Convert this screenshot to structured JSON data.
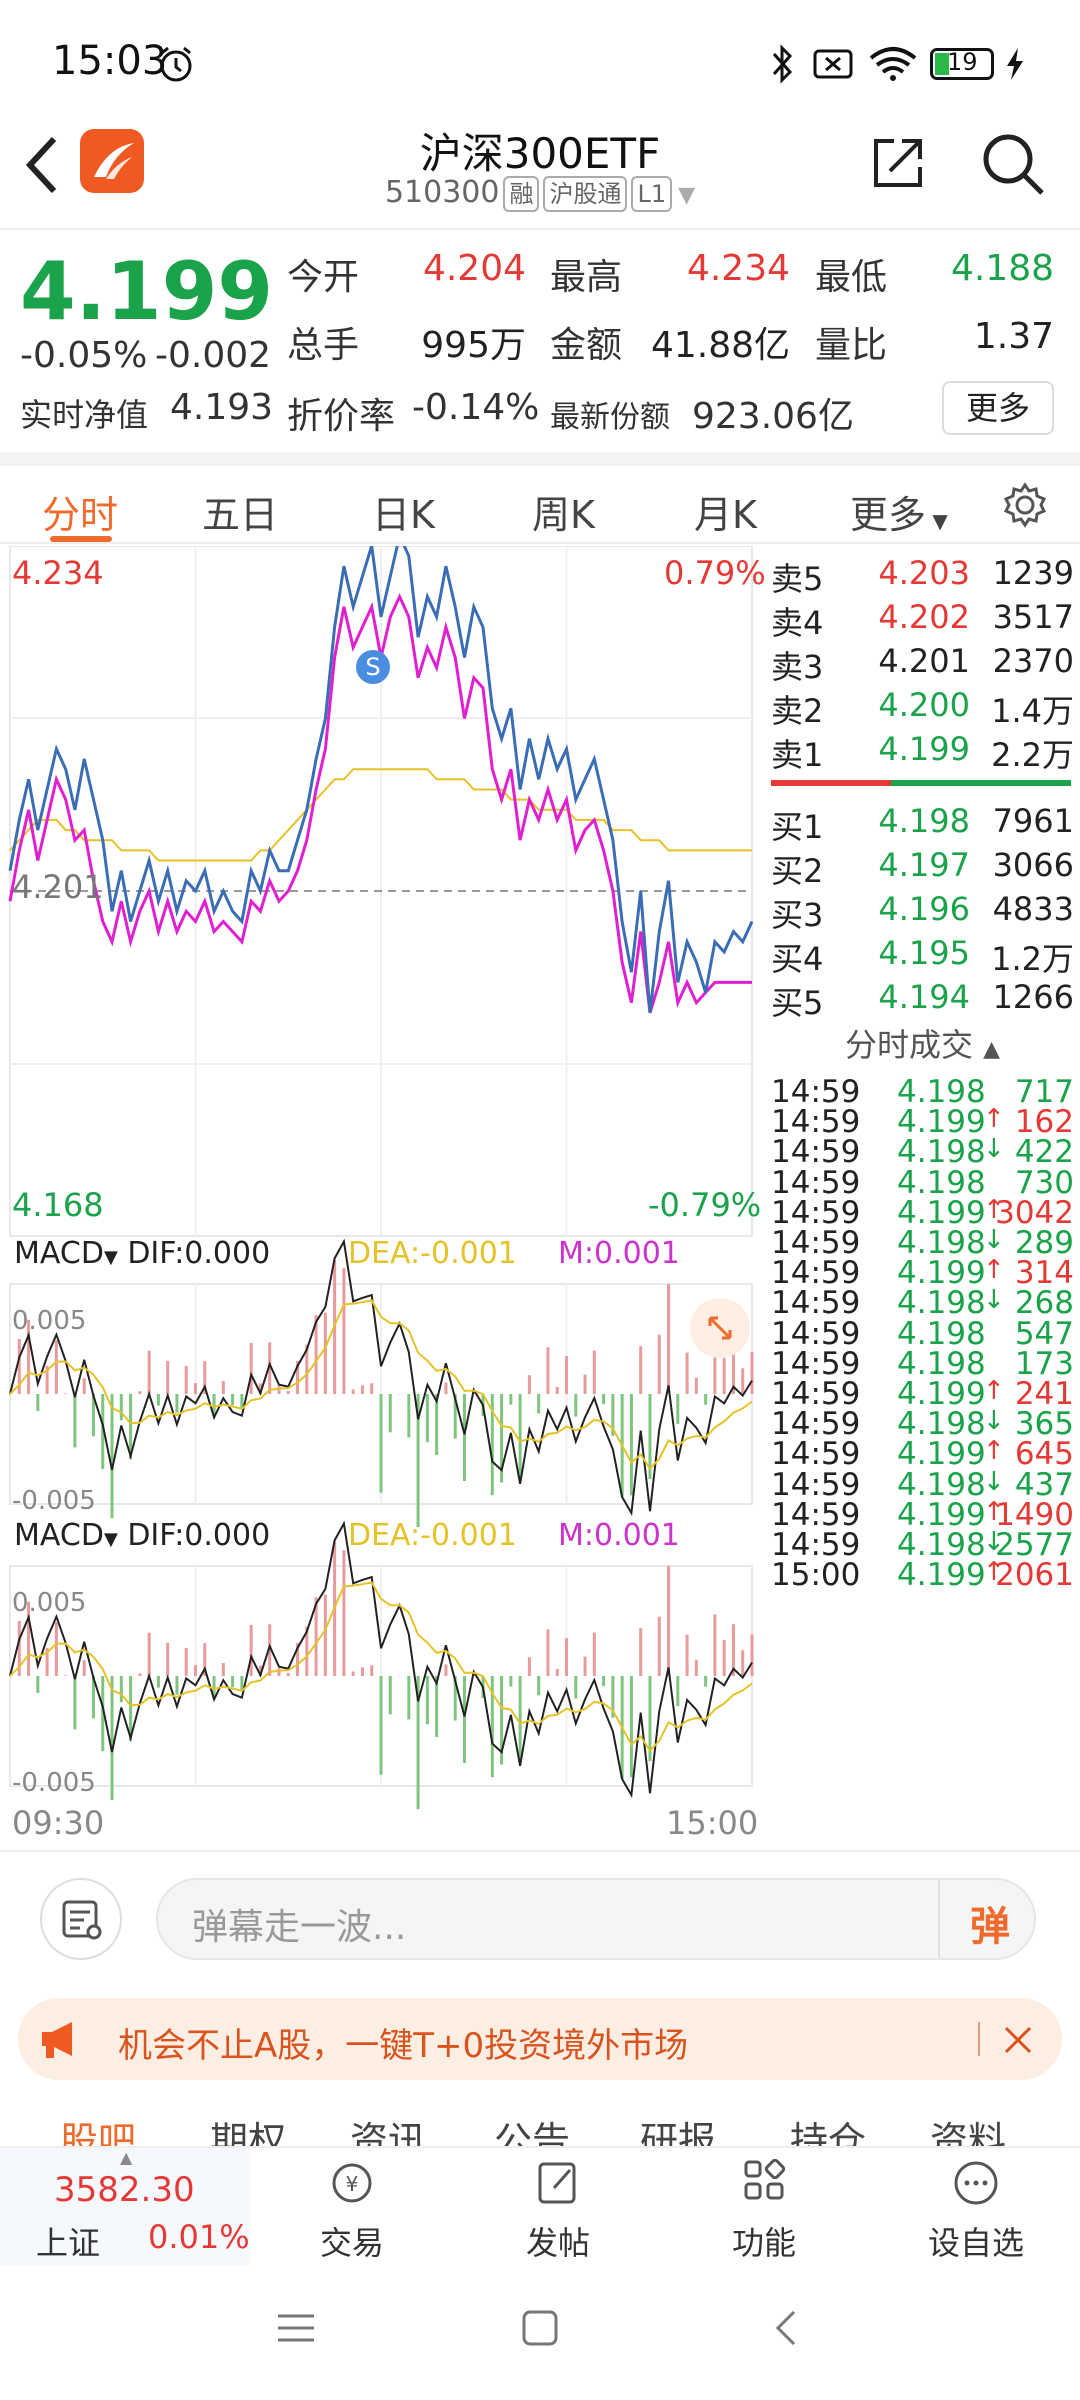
{
  "status": {
    "time": "15:03",
    "battery": "19"
  },
  "header": {
    "title": "沪深300ETF",
    "code": "510300",
    "tags": [
      "融",
      "沪股通",
      "L1"
    ]
  },
  "quote": {
    "price": "4.199",
    "pct": "-0.05%",
    "chg": "-0.002",
    "nav_label": "实时净值",
    "nav": "4.193",
    "discount_label": "折价率",
    "discount": "-0.14%",
    "shares_label": "最新份额",
    "shares": "923.06亿",
    "open_label": "今开",
    "open": "4.204",
    "high_label": "最高",
    "high": "4.234",
    "low_label": "最低",
    "low": "4.188",
    "vol_label": "总手",
    "vol": "995万",
    "amt_label": "金额",
    "amt": "41.88亿",
    "ratio_label": "量比",
    "ratio": "1.37",
    "more": "更多"
  },
  "tabs": [
    "分时",
    "五日",
    "日K",
    "周K",
    "月K",
    "更多"
  ],
  "chart": {
    "top_price": "4.234",
    "top_pct": "0.79%",
    "mid_price": "4.201",
    "bottom_price": "4.168",
    "bottom_pct": "-0.79%",
    "marker": "S",
    "start_time": "09:30",
    "end_time": "15:00"
  },
  "macd": [
    {
      "name": "MACD",
      "dif": "DIF:0.000",
      "dea": "DEA:-0.001",
      "m": "M:0.001",
      "top": "0.005",
      "bottom": "-0.005"
    },
    {
      "name": "MACD",
      "dif": "DIF:0.000",
      "dea": "DEA:-0.001",
      "m": "M:0.001",
      "top": "0.005",
      "bottom": "-0.005"
    }
  ],
  "chart_data": {
    "type": "line",
    "title": "",
    "x_range": [
      "09:30",
      "15:00"
    ],
    "ylim": [
      4.168,
      4.234
    ],
    "baseline": 4.201,
    "series": [
      {
        "name": "",
        "color": "#3b6db5",
        "values": [
          4.203,
          4.208,
          4.212,
          4.207,
          4.211,
          4.215,
          4.213,
          4.209,
          4.214,
          4.21,
          4.206,
          4.199,
          4.203,
          4.198,
          4.201,
          4.204,
          4.2,
          4.203,
          4.199,
          4.202,
          4.201,
          4.203,
          4.199,
          4.201,
          4.199,
          4.198,
          4.203,
          4.201,
          4.205,
          4.203,
          4.203,
          4.206,
          4.209,
          4.214,
          4.218,
          4.227,
          4.233,
          4.229,
          4.232,
          4.235,
          4.228,
          4.232,
          4.236,
          4.234,
          4.226,
          4.23,
          4.228,
          4.233,
          4.229,
          4.224,
          4.229,
          4.227,
          4.219,
          4.216,
          4.219,
          4.211,
          4.216,
          4.212,
          4.216,
          4.213,
          4.215,
          4.21,
          4.212,
          4.214,
          4.21,
          4.206,
          4.198,
          4.193,
          4.201,
          4.189,
          4.197,
          4.202,
          4.192,
          4.196,
          4.194,
          4.191,
          4.196,
          4.195,
          4.197,
          4.196,
          4.198
        ]
      },
      {
        "name": "",
        "color": "#e020d0",
        "values": [
          4.2,
          4.205,
          4.209,
          4.204,
          4.208,
          4.212,
          4.21,
          4.206,
          4.207,
          4.202,
          4.198,
          4.196,
          4.2,
          4.196,
          4.199,
          4.201,
          4.197,
          4.2,
          4.197,
          4.199,
          4.198,
          4.2,
          4.197,
          4.198,
          4.197,
          4.196,
          4.2,
          4.199,
          4.202,
          4.2,
          4.201,
          4.203,
          4.206,
          4.211,
          4.215,
          4.224,
          4.229,
          4.225,
          4.227,
          4.229,
          4.224,
          4.228,
          4.23,
          4.228,
          4.222,
          4.225,
          4.223,
          4.227,
          4.224,
          4.218,
          4.222,
          4.221,
          4.213,
          4.21,
          4.213,
          4.206,
          4.21,
          4.208,
          4.211,
          4.208,
          4.21,
          4.205,
          4.207,
          4.208,
          4.205,
          4.201,
          4.194,
          4.19,
          4.197,
          4.189,
          4.192,
          4.196,
          4.19,
          4.192,
          4.19,
          4.191,
          4.192,
          4.192,
          4.192,
          4.192,
          4.192
        ]
      },
      {
        "name": "",
        "color": "#e6c229",
        "values": [
          4.205,
          4.206,
          4.207,
          4.208,
          4.208,
          4.208,
          4.207,
          4.207,
          4.206,
          4.206,
          4.206,
          4.206,
          4.205,
          4.205,
          4.205,
          4.205,
          4.204,
          4.204,
          4.204,
          4.204,
          4.204,
          4.204,
          4.204,
          4.204,
          4.204,
          4.204,
          4.204,
          4.205,
          4.205,
          4.206,
          4.207,
          4.208,
          4.209,
          4.21,
          4.211,
          4.212,
          4.212,
          4.213,
          4.213,
          4.213,
          4.213,
          4.213,
          4.213,
          4.213,
          4.213,
          4.213,
          4.212,
          4.212,
          4.212,
          4.212,
          4.211,
          4.211,
          4.211,
          4.211,
          4.21,
          4.21,
          4.21,
          4.209,
          4.209,
          4.209,
          4.209,
          4.208,
          4.208,
          4.208,
          4.208,
          4.207,
          4.207,
          4.207,
          4.206,
          4.206,
          4.206,
          4.205,
          4.205,
          4.205,
          4.205,
          4.205,
          4.205,
          4.205,
          4.205,
          4.205,
          4.205
        ]
      }
    ]
  },
  "book": {
    "asks": [
      {
        "label": "卖5",
        "price": "4.203",
        "vol": "1239",
        "color": "red"
      },
      {
        "label": "卖4",
        "price": "4.202",
        "vol": "3517",
        "color": "red"
      },
      {
        "label": "卖3",
        "price": "4.201",
        "vol": "2370",
        "color": "blk"
      },
      {
        "label": "卖2",
        "price": "4.200",
        "vol": "1.4万",
        "color": "green"
      },
      {
        "label": "卖1",
        "price": "4.199",
        "vol": "2.2万",
        "color": "green"
      }
    ],
    "bids": [
      {
        "label": "买1",
        "price": "4.198",
        "vol": "7961",
        "color": "green"
      },
      {
        "label": "买2",
        "price": "4.197",
        "vol": "3066",
        "color": "green"
      },
      {
        "label": "买3",
        "price": "4.196",
        "vol": "4833",
        "color": "green"
      },
      {
        "label": "买4",
        "price": "4.195",
        "vol": "1.2万",
        "color": "green"
      },
      {
        "label": "买5",
        "price": "4.194",
        "vol": "1266",
        "color": "green"
      }
    ],
    "trades_title": "分时成交",
    "trades": [
      {
        "t": "14:59",
        "p": "4.198",
        "v": "717",
        "d": "",
        "c": "green"
      },
      {
        "t": "14:59",
        "p": "4.199",
        "v": "162",
        "d": "↑",
        "c": "red"
      },
      {
        "t": "14:59",
        "p": "4.198",
        "v": "422",
        "d": "↓",
        "c": "green"
      },
      {
        "t": "14:59",
        "p": "4.198",
        "v": "730",
        "d": "",
        "c": "green"
      },
      {
        "t": "14:59",
        "p": "4.199",
        "v": "3042",
        "d": "↑",
        "c": "red"
      },
      {
        "t": "14:59",
        "p": "4.198",
        "v": "289",
        "d": "↓",
        "c": "green"
      },
      {
        "t": "14:59",
        "p": "4.199",
        "v": "314",
        "d": "↑",
        "c": "red"
      },
      {
        "t": "14:59",
        "p": "4.198",
        "v": "268",
        "d": "↓",
        "c": "green"
      },
      {
        "t": "14:59",
        "p": "4.198",
        "v": "547",
        "d": "",
        "c": "green"
      },
      {
        "t": "14:59",
        "p": "4.198",
        "v": "173",
        "d": "",
        "c": "green"
      },
      {
        "t": "14:59",
        "p": "4.199",
        "v": "241",
        "d": "↑",
        "c": "red"
      },
      {
        "t": "14:59",
        "p": "4.198",
        "v": "365",
        "d": "↓",
        "c": "green"
      },
      {
        "t": "14:59",
        "p": "4.199",
        "v": "645",
        "d": "↑",
        "c": "red"
      },
      {
        "t": "14:59",
        "p": "4.198",
        "v": "437",
        "d": "↓",
        "c": "green"
      },
      {
        "t": "14:59",
        "p": "4.199",
        "v": "1490",
        "d": "↑",
        "c": "red"
      },
      {
        "t": "14:59",
        "p": "4.198",
        "v": "2577",
        "d": "↓",
        "c": "green"
      },
      {
        "t": "15:00",
        "p": "4.199",
        "v": "2061",
        "d": "↑",
        "c": "red"
      }
    ]
  },
  "danmu": {
    "placeholder": "弹幕走一波...",
    "btn": "弹"
  },
  "ad": {
    "text": "机会不止A股，一键T+0投资境外市场"
  },
  "peek_tabs": [
    "股吧",
    "期权",
    "资讯",
    "公告",
    "研报",
    "持仓",
    "资料"
  ],
  "bottom_nav": {
    "index_value": "3582.30",
    "index_name": "上证",
    "index_pct": "0.01%",
    "items": [
      "交易",
      "发帖",
      "功能",
      "设自选"
    ]
  }
}
